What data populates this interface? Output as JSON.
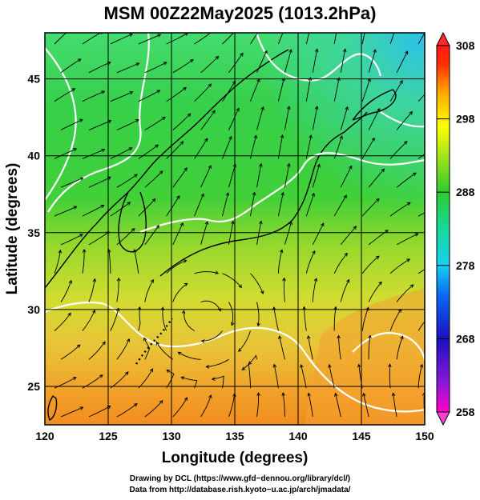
{
  "title": "MSM 00Z22May2025 (1013.2hPa)",
  "map": {
    "xlabel": "Longitude (degrees)",
    "ylabel": "Latitude  (degrees)",
    "xlim": [
      120,
      150
    ],
    "ylim": [
      22.5,
      48
    ],
    "xticks": [
      "120",
      "125",
      "130",
      "135",
      "140",
      "145",
      "150"
    ],
    "yticks": [
      "25",
      "30",
      "35",
      "40",
      "45"
    ],
    "grid": true,
    "field": "temperature",
    "overlay": "wind streamlines",
    "contour_color": "#ffffff"
  },
  "colorbar": {
    "range": [
      258,
      308
    ],
    "ticks": [
      "258",
      "268",
      "278",
      "288",
      "298",
      "308"
    ],
    "colors": [
      "#ff00c8",
      "#8a18d8",
      "#1a10c0",
      "#0a6af2",
      "#18d0f0",
      "#18d89a",
      "#2ccc2c",
      "#a6e41c",
      "#ffff00",
      "#ffaa00",
      "#ff3000",
      "#ff1a1a"
    ]
  },
  "credits": {
    "line1": "Drawing by DCL (https://www.gfd−dennou.org/library/dcl/)",
    "line2": "Data from http://database.rish.kyoto−u.ac.jp/arch/jmadata/"
  }
}
